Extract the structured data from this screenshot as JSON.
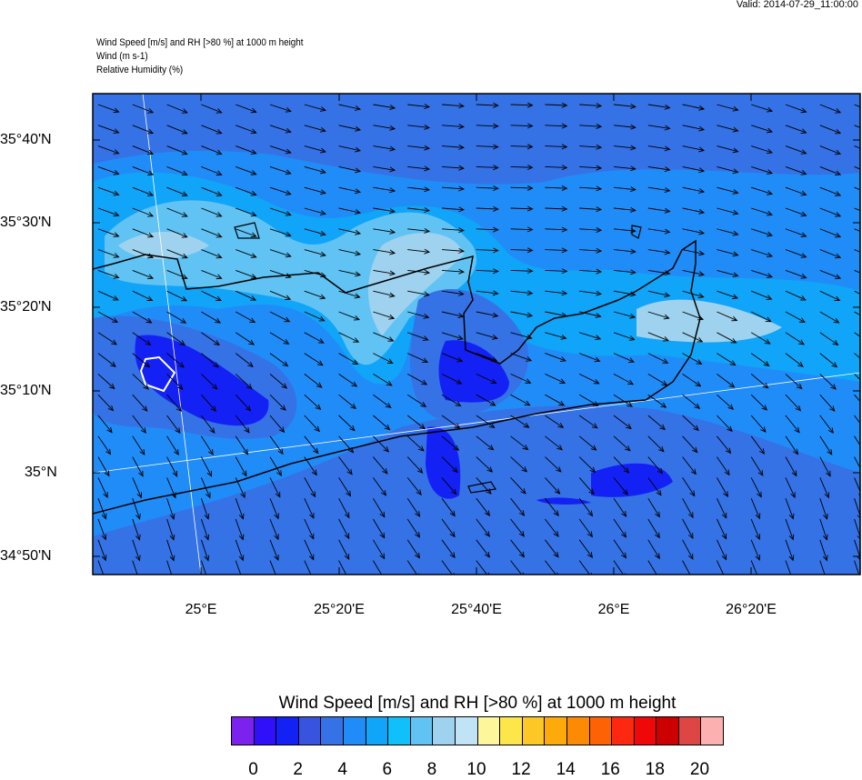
{
  "valid": "Valid: 2014-07-29_11:00:00",
  "header": {
    "line1": "Wind Speed [m/s] and RH [>80 %] at 1000 m height",
    "line2": "Wind   (m s-1)",
    "line3": "Relative Humidity   (%)"
  },
  "map": {
    "lat_labels": [
      "35°40'N",
      "35°30'N",
      "35°20'N",
      "35°10'N",
      "35°N",
      "34°50'N"
    ],
    "lon_labels": [
      "25°E",
      "25°20'E",
      "25°40'E",
      "26°E",
      "26°20'E"
    ],
    "field_colors": {
      "base": "#3572e5",
      "mid": "#208cf8",
      "cyan": "#10a5f8",
      "light": "#60c3f3",
      "pale": "#9ed2ef",
      "dark": "#1421f5",
      "darker": "#3853e0"
    },
    "rh_contour_color": "#ffffff",
    "arrow_color": "#000000",
    "coast_color": "#000000"
  },
  "colorbar": {
    "title": "Wind Speed [m/s] and RH [>80 %] at 1000 m height",
    "colors": [
      "#7b22ee",
      "#3010f8",
      "#1421f5",
      "#3853e0",
      "#3572e5",
      "#208cf8",
      "#10a5f8",
      "#10c0fa",
      "#60c3f3",
      "#9ed2ef",
      "#c0e4f5",
      "#fdf69a",
      "#fde64a",
      "#fdc725",
      "#fdaa0a",
      "#fd8a05",
      "#fd6205",
      "#fd2810",
      "#ef0808",
      "#cc0000",
      "#de4545",
      "#fdb0b0"
    ],
    "labels": [
      "0",
      "2",
      "4",
      "6",
      "8",
      "10",
      "12",
      "14",
      "16",
      "18",
      "20"
    ]
  }
}
